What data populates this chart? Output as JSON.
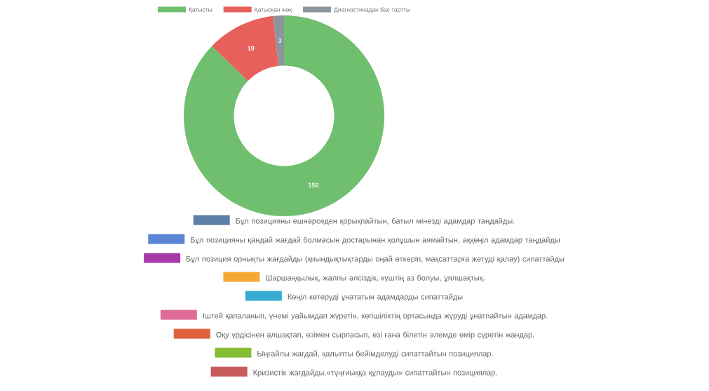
{
  "chart_data": [
    {
      "type": "donut",
      "categories": [
        "Қатысты",
        "Қатысқан жоқ",
        "Диагностикадан бас тартты"
      ],
      "values": [
        150,
        19,
        3
      ],
      "colors": [
        "#6fbf6f",
        "#e8605a",
        "#8c949c"
      ],
      "data_labels": true,
      "legend": "top"
    },
    {
      "type": "other",
      "categories": [
        "Бұл позицияны ешнәрседен қорықпайтын,  батыл  мінезді  адамдар таңдайды.",
        "Бұл позицияны қандай жағдай болмасын достарынан қолұшын аямайтын, аққөңіл адамдар таңдайды",
        "Бұл позиция орнықты жағдайды (қиындықтықтарды  оңай  өткеріп, мақсаттарға жетуді қалау) сипаттайды",
        "Шаршаңқылық, жалпы әлсіздік, күштің аз болуы, ұялшақтық.",
        "Көңіл көтеруді ұнататын адамдарды сипаттайды",
        "Іштей қапаланып, үнемі уайымдап жүретін, көпшіліктің ортасында жүруді ұнатпайтын адамдар.",
        "Оқу үрдісінен алшақтап, өзімен  сырласып,  өзі  ғана  білетін  әлемде  өмір  сүретін  жандар.",
        "Ыңғайлы жағдай, қалыпты бейімделуді сипаттайтын позициялар.",
        "Кризистік жағдайды,«түңғиыққа құлауды» сипаттайтын позициялар."
      ],
      "colors": [
        "#5b7fa6",
        "#5b86d6",
        "#a63aa6",
        "#f5a833",
        "#37aad2",
        "#e06b9a",
        "#e0623c",
        "#84bd32",
        "#c85a5a"
      ]
    }
  ]
}
